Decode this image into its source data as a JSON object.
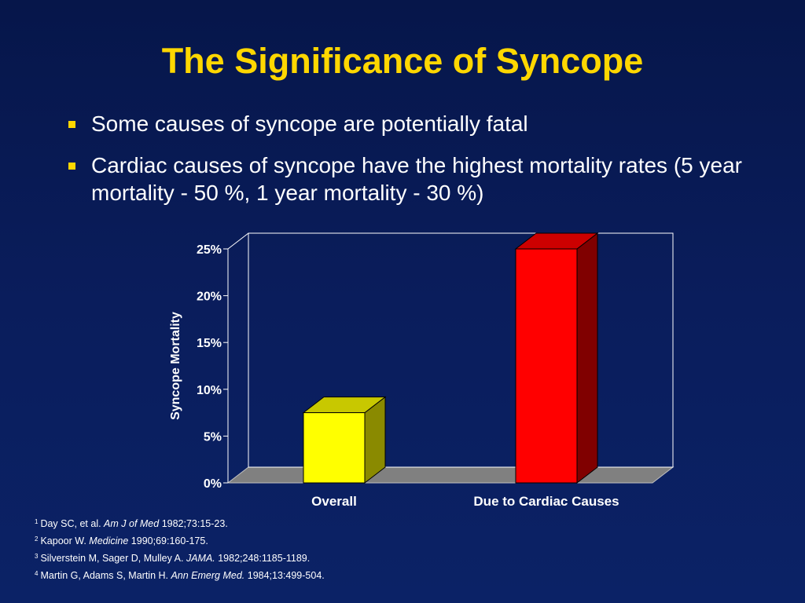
{
  "slide": {
    "title": "The Significance of Syncope",
    "bullets": [
      "Some causes of syncope are potentially fatal",
      "Cardiac causes of syncope have the highest mortality rates (5 year mortality - 50 %, 1 year mortality - 30 %)"
    ],
    "footnotes": [
      {
        "num": "1",
        "pre": "Day SC, et al. ",
        "journal": "Am J of Med",
        "post": " 1982;73:15-23."
      },
      {
        "num": "2",
        "pre": "Kapoor W. ",
        "journal": "Medicine",
        "post": " 1990;69:160-175."
      },
      {
        "num": "3",
        "pre": "Silverstein M, Sager D, Mulley A.  ",
        "journal": "JAMA.",
        "post": "  1982;248:1185-1189."
      },
      {
        "num": "4",
        "pre": "Martin G, Adams S, Martin H.  ",
        "journal": "Ann Emerg Med.",
        "post": " 1984;13:499-504."
      }
    ]
  },
  "colors": {
    "title": "#ffd700",
    "bullet_marker": "#ffd700",
    "bar_overall": "#ffff00",
    "bar_cardiac": "#ff0000"
  },
  "chart_data": {
    "type": "bar",
    "categories": [
      "Overall",
      "Due to Cardiac Causes"
    ],
    "values": [
      7.5,
      25
    ],
    "ylabel": "Syncope Mortality",
    "xlabel": "",
    "ylim": [
      0,
      25
    ],
    "yticks": [
      "0%",
      "5%",
      "10%",
      "15%",
      "20%",
      "25%"
    ],
    "style": "3d",
    "grid": false
  }
}
